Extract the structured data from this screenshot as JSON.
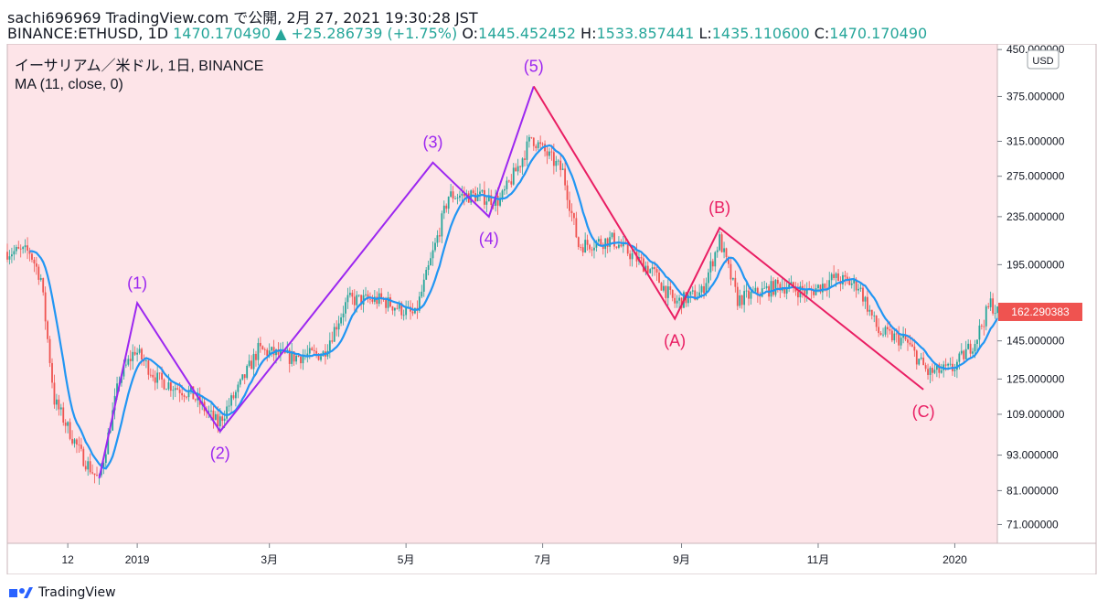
{
  "header": {
    "line1": "sachi696969 TradingView.com で公開, 2月 27, 2021 19:30:28 JST",
    "symbol": "BINANCE:ETHUSD, 1D",
    "last": "1470.170490",
    "change": "+25.286739 (+1.75%)",
    "o_label": "O:",
    "o": "1445.452452",
    "h_label": "H:",
    "h": "1533.857441",
    "l_label": "L:",
    "l": "1435.110600",
    "c_label": "C:",
    "c": "1470.170490"
  },
  "legend": {
    "title": "イーサリアム／米ドル, 1日, BINANCE",
    "ma": "MA (11, close, 0)"
  },
  "axis": {
    "currency": "USD",
    "price_ticks": [
      "450.000000",
      "375.000000",
      "315.000000",
      "275.000000",
      "235.000000",
      "195.000000",
      "145.000000",
      "125.000000",
      "109.000000",
      "93.000000",
      "81.000000",
      "71.000000"
    ],
    "time_ticks": [
      "12",
      "2019",
      "3月",
      "5月",
      "7月",
      "9月",
      "11月",
      "2020"
    ],
    "last_price": "162.290383"
  },
  "footer": {
    "brand": "TradingView"
  },
  "colors": {
    "bg": "#fde4e8",
    "up": "#26a69a",
    "down": "#ef5350",
    "ma": "#2196f3",
    "impulse": "#9c27f0",
    "corrective": "#e91e63",
    "last": "#ef5350"
  },
  "chart_data": {
    "type": "candlestick",
    "title": "イーサリアム／米ドル, 1日, BINANCE",
    "y_scale": "log",
    "ylim": [
      66,
      460
    ],
    "xlim": [
      "2018-11-04",
      "2020-01-20"
    ],
    "ma": "MA (11, close, 0)",
    "price_path": [
      [
        "2018-11-04",
        205
      ],
      [
        "2018-11-14",
        205
      ],
      [
        "2018-11-19",
        185
      ],
      [
        "2018-11-25",
        115
      ],
      [
        "2018-12-07",
        93
      ],
      [
        "2018-12-15",
        84
      ],
      [
        "2018-12-24",
        125
      ],
      [
        "2018-12-31",
        140
      ],
      [
        "2019-01-10",
        125
      ],
      [
        "2019-01-25",
        118
      ],
      [
        "2019-02-06",
        105
      ],
      [
        "2019-02-15",
        120
      ],
      [
        "2019-02-24",
        140
      ],
      [
        "2019-03-10",
        136
      ],
      [
        "2019-03-25",
        138
      ],
      [
        "2019-04-05",
        170
      ],
      [
        "2019-04-20",
        170
      ],
      [
        "2019-05-05",
        160
      ],
      [
        "2019-05-14",
        210
      ],
      [
        "2019-05-20",
        255
      ],
      [
        "2019-06-01",
        255
      ],
      [
        "2019-06-12",
        250
      ],
      [
        "2019-06-21",
        290
      ],
      [
        "2019-06-26",
        320
      ],
      [
        "2019-07-10",
        280
      ],
      [
        "2019-07-17",
        210
      ],
      [
        "2019-08-01",
        215
      ],
      [
        "2019-08-19",
        190
      ],
      [
        "2019-08-29",
        168
      ],
      [
        "2019-09-10",
        175
      ],
      [
        "2019-09-18",
        215
      ],
      [
        "2019-09-26",
        170
      ],
      [
        "2019-10-15",
        180
      ],
      [
        "2019-10-28",
        175
      ],
      [
        "2019-11-08",
        185
      ],
      [
        "2019-11-19",
        180
      ],
      [
        "2019-11-28",
        150
      ],
      [
        "2019-12-10",
        145
      ],
      [
        "2019-12-20",
        128
      ],
      [
        "2019-12-31",
        130
      ],
      [
        "2020-01-10",
        145
      ],
      [
        "2020-01-17",
        168
      ],
      [
        "2020-01-20",
        162
      ]
    ],
    "last_price": 162.290383,
    "elliott_waves": [
      {
        "label": "(1)",
        "date": "2019-01-01",
        "price": 168
      },
      {
        "label": "(2)",
        "date": "2019-02-07",
        "price": 102
      },
      {
        "label": "(3)",
        "date": "2019-05-13",
        "price": 290
      },
      {
        "label": "(4)",
        "date": "2019-06-07",
        "price": 235
      },
      {
        "label": "(5)",
        "date": "2019-06-27",
        "price": 390
      },
      {
        "label": "(A)",
        "date": "2019-08-29",
        "price": 158
      },
      {
        "label": "(B)",
        "date": "2019-09-18",
        "price": 225
      },
      {
        "label": "(C)",
        "date": "2019-12-18",
        "price": 120
      }
    ],
    "wave_start": {
      "date": "2018-12-15",
      "price": 85
    }
  }
}
